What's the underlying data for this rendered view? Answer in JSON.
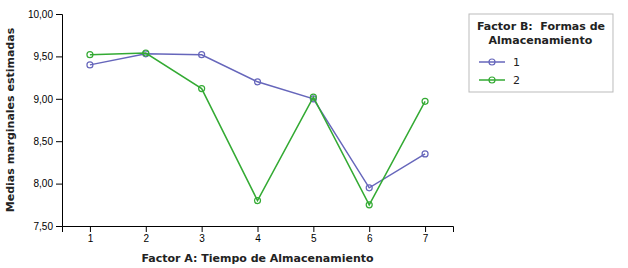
{
  "chart_data": {
    "type": "line",
    "x": [
      1,
      2,
      3,
      4,
      5,
      6,
      7
    ],
    "xlabel": "Factor A: Tiempo de Almacenamiento",
    "ylabel": "Medias marginales estimadas",
    "legend_title": "Factor B:  Formas de\n   Almacenamiento",
    "series": [
      {
        "name": "1",
        "color": "#6666bb",
        "values": [
          9.4,
          9.53,
          9.52,
          9.2,
          9.0,
          7.95,
          8.35
        ]
      },
      {
        "name": "2",
        "color": "#33aa33",
        "values": [
          9.52,
          9.54,
          9.12,
          7.8,
          9.02,
          7.75,
          8.97
        ]
      }
    ],
    "xlim": [
      0.5,
      7.5
    ],
    "xticks": [
      1,
      2,
      3,
      4,
      5,
      6,
      7
    ],
    "ylim": [
      7.5,
      10.0
    ],
    "yticks": [
      {
        "value": 7.5,
        "label": "7,50"
      },
      {
        "value": 8.0,
        "label": "8,00"
      },
      {
        "value": 8.5,
        "label": "8,50"
      },
      {
        "value": 9.0,
        "label": "9,00"
      },
      {
        "value": 9.5,
        "label": "9,50"
      },
      {
        "value": 10.0,
        "label": "10,00"
      }
    ],
    "grid": false,
    "legend": "right",
    "marker": "circle"
  }
}
